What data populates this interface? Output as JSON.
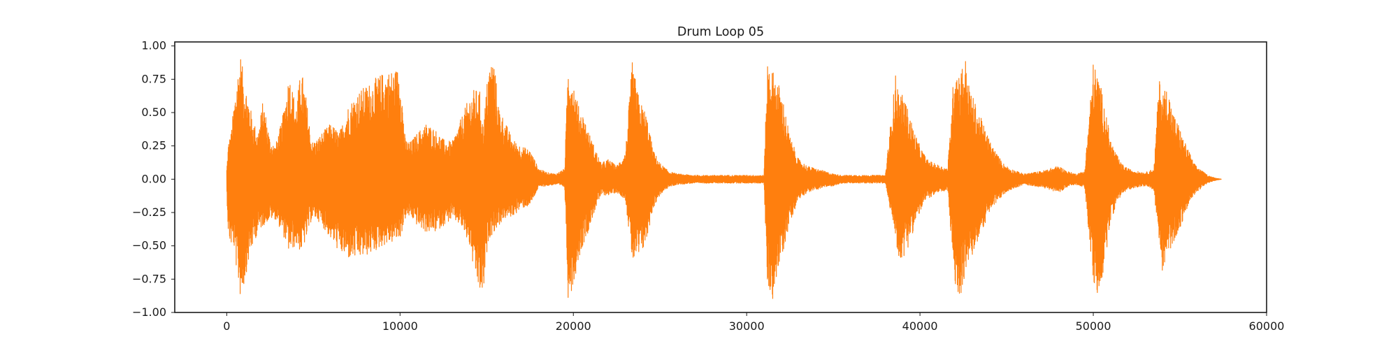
{
  "chart_data": {
    "type": "line",
    "title": "Drum Loop 05",
    "xlabel": "",
    "ylabel": "",
    "xlim": [
      -3000,
      60000
    ],
    "ylim": [
      -1.0,
      1.03
    ],
    "x_ticks": [
      0,
      10000,
      20000,
      30000,
      40000,
      50000,
      60000
    ],
    "x_tick_labels": [
      "0",
      "10000",
      "20000",
      "30000",
      "40000",
      "50000",
      "60000"
    ],
    "y_ticks": [
      1.0,
      0.75,
      0.5,
      0.25,
      0.0,
      -0.25,
      -0.5,
      -0.75,
      -1.0
    ],
    "y_tick_labels": [
      "1.00",
      "0.75",
      "0.50",
      "0.25",
      "0.00",
      "−0.25",
      "−0.50",
      "−0.75",
      "−1.00"
    ],
    "grid": false,
    "legend": false,
    "series": [
      {
        "color": "#ff7f0e",
        "x_range": [
          0,
          57400
        ],
        "envelope": {
          "x": [
            0,
            100,
            250,
            400,
            600,
            800,
            1000,
            1200,
            1500,
            1800,
            2100,
            2500,
            2800,
            3200,
            3600,
            4000,
            4300,
            4600,
            4900,
            5200,
            5500,
            6000,
            6500,
            7000,
            7500,
            8000,
            8500,
            9000,
            9500,
            10000,
            10300,
            10600,
            11000,
            11500,
            12000,
            12500,
            13000,
            13500,
            14000,
            14300,
            14600,
            14800,
            15100,
            15400,
            15700,
            16000,
            16500,
            17000,
            17500,
            18000,
            18500,
            19000,
            19500,
            19700,
            20000,
            20300,
            20600,
            20900,
            21200,
            21600,
            22000,
            22500,
            23000,
            23400,
            23800,
            24200,
            24600,
            25000,
            25500,
            26000,
            27000,
            28000,
            29000,
            30000,
            31000,
            31200,
            31500,
            31800,
            32100,
            32500,
            33000,
            33500,
            34000,
            34500,
            35000,
            35500,
            36000,
            36500,
            37000,
            38000,
            38600,
            38800,
            39100,
            39400,
            39700,
            40000,
            40400,
            40800,
            41200,
            41600,
            42000,
            42300,
            42600,
            42800,
            43100,
            43400,
            43700,
            44000,
            44400,
            44800,
            45200,
            45600,
            46000,
            47000,
            48000,
            48500,
            49000,
            49500,
            50000,
            50300,
            50600,
            50800,
            51000,
            51300,
            51600,
            52000,
            52500,
            53000,
            53500,
            53800,
            54000,
            54300,
            54600,
            54900,
            55200,
            55500,
            55800,
            56200,
            56600,
            57000,
            57400
          ],
          "upper": [
            0.08,
            0.28,
            0.35,
            0.55,
            0.78,
            0.94,
            0.75,
            0.65,
            0.45,
            0.35,
            0.6,
            0.3,
            0.25,
            0.45,
            0.8,
            0.55,
            0.84,
            0.6,
            0.28,
            0.3,
            0.35,
            0.42,
            0.35,
            0.55,
            0.65,
            0.7,
            0.75,
            0.8,
            0.82,
            0.84,
            0.3,
            0.28,
            0.35,
            0.42,
            0.38,
            0.3,
            0.28,
            0.45,
            0.62,
            0.68,
            0.66,
            0.4,
            0.85,
            0.92,
            0.55,
            0.45,
            0.3,
            0.25,
            0.22,
            0.08,
            0.05,
            0.04,
            0.08,
            0.9,
            0.75,
            0.55,
            0.48,
            0.35,
            0.25,
            0.12,
            0.15,
            0.1,
            0.2,
            0.88,
            0.6,
            0.5,
            0.22,
            0.12,
            0.06,
            0.04,
            0.03,
            0.03,
            0.03,
            0.03,
            0.03,
            0.9,
            0.82,
            0.74,
            0.6,
            0.32,
            0.15,
            0.1,
            0.08,
            0.06,
            0.04,
            0.03,
            0.03,
            0.03,
            0.03,
            0.03,
            0.8,
            0.65,
            0.62,
            0.48,
            0.35,
            0.25,
            0.15,
            0.12,
            0.1,
            0.08,
            0.9,
            0.8,
            0.94,
            0.72,
            0.6,
            0.5,
            0.4,
            0.3,
            0.2,
            0.12,
            0.08,
            0.06,
            0.04,
            0.06,
            0.1,
            0.06,
            0.04,
            0.06,
            0.88,
            0.78,
            0.6,
            0.45,
            0.3,
            0.2,
            0.12,
            0.08,
            0.06,
            0.05,
            0.08,
            0.76,
            0.66,
            0.7,
            0.5,
            0.42,
            0.3,
            0.22,
            0.12,
            0.07,
            0.03,
            0.01,
            0.0
          ],
          "lower": [
            -0.1,
            -0.45,
            -0.5,
            -0.5,
            -0.72,
            -0.9,
            -0.8,
            -0.65,
            -0.5,
            -0.4,
            -0.35,
            -0.3,
            -0.3,
            -0.4,
            -0.55,
            -0.5,
            -0.55,
            -0.45,
            -0.3,
            -0.3,
            -0.35,
            -0.45,
            -0.55,
            -0.6,
            -0.6,
            -0.58,
            -0.55,
            -0.5,
            -0.48,
            -0.45,
            -0.3,
            -0.28,
            -0.35,
            -0.4,
            -0.4,
            -0.35,
            -0.3,
            -0.35,
            -0.5,
            -0.72,
            -0.86,
            -0.88,
            -0.45,
            -0.4,
            -0.35,
            -0.3,
            -0.28,
            -0.22,
            -0.2,
            -0.06,
            -0.05,
            -0.04,
            -0.06,
            -0.9,
            -0.8,
            -0.6,
            -0.48,
            -0.38,
            -0.25,
            -0.12,
            -0.12,
            -0.1,
            -0.15,
            -0.62,
            -0.6,
            -0.48,
            -0.22,
            -0.12,
            -0.06,
            -0.04,
            -0.03,
            -0.03,
            -0.03,
            -0.03,
            -0.03,
            -0.8,
            -0.9,
            -0.7,
            -0.55,
            -0.32,
            -0.15,
            -0.1,
            -0.08,
            -0.06,
            -0.05,
            -0.03,
            -0.03,
            -0.03,
            -0.03,
            -0.03,
            -0.45,
            -0.62,
            -0.58,
            -0.48,
            -0.35,
            -0.25,
            -0.15,
            -0.12,
            -0.1,
            -0.08,
            -0.82,
            -0.9,
            -0.72,
            -0.65,
            -0.55,
            -0.45,
            -0.35,
            -0.25,
            -0.18,
            -0.12,
            -0.08,
            -0.06,
            -0.04,
            -0.06,
            -0.1,
            -0.06,
            -0.04,
            -0.06,
            -0.78,
            -0.9,
            -0.7,
            -0.5,
            -0.32,
            -0.2,
            -0.12,
            -0.08,
            -0.06,
            -0.05,
            -0.08,
            -0.5,
            -0.7,
            -0.6,
            -0.48,
            -0.4,
            -0.3,
            -0.2,
            -0.12,
            -0.07,
            -0.03,
            -0.01,
            0.0
          ]
        }
      }
    ]
  }
}
